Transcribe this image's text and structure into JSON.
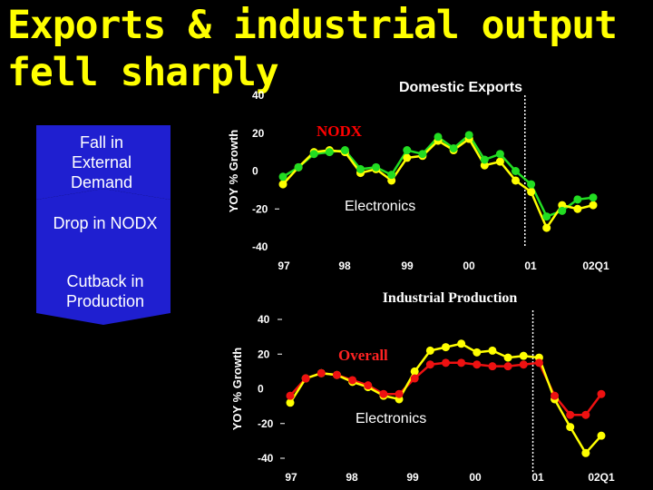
{
  "slide": {
    "title": "Exports & industrial output fell sharply",
    "colors": {
      "title": "#ffff00",
      "background": "#000000",
      "arrow": "#1f1fd0"
    }
  },
  "steps": [
    {
      "label": "Fall in External Demand"
    },
    {
      "label": "Drop in NODX"
    },
    {
      "label": "Cutback in Production"
    }
  ],
  "chart_data": [
    {
      "type": "line",
      "title": "Domestic Exports",
      "ylabel": "YOY % Growth",
      "ylim": [
        -40,
        40
      ],
      "yticks": [
        "40",
        "20",
        "0",
        "-20",
        "-40"
      ],
      "xticks": [
        "97",
        "98",
        "99",
        "00",
        "01",
        "02Q1"
      ],
      "x": [
        1997.0,
        1997.25,
        1997.5,
        1997.75,
        1998.0,
        1998.25,
        1998.5,
        1998.75,
        1999.0,
        1999.25,
        1999.5,
        1999.75,
        2000.0,
        2000.25,
        2000.5,
        2000.75,
        2001.0,
        2001.25,
        2001.5,
        2001.75,
        2002.0
      ],
      "vline_x": 2000.9,
      "grid": false,
      "annotations": [
        "NODX",
        "Electronics"
      ],
      "series": [
        {
          "name": "NODX",
          "color": "#22dd22",
          "values": [
            -3,
            2,
            9,
            10,
            11,
            1,
            2,
            -2,
            11,
            9,
            18,
            12,
            19,
            6,
            9,
            0,
            -7,
            -24,
            -21,
            -15,
            -14
          ]
        },
        {
          "name": "Electronics",
          "color": "#ffff00",
          "values": [
            -7,
            2,
            10,
            11,
            10,
            -1,
            1,
            -5,
            7,
            8,
            16,
            11,
            17,
            3,
            5,
            -5,
            -11,
            -30,
            -18,
            -20,
            -18
          ]
        }
      ]
    },
    {
      "type": "line",
      "title": "Industrial Production",
      "ylabel": "YOY % Growth",
      "ylim": [
        -40,
        40
      ],
      "yticks": [
        "40",
        "20",
        "0",
        "-20",
        "-40"
      ],
      "xticks": [
        "97",
        "98",
        "99",
        "00",
        "01",
        "02Q1"
      ],
      "x": [
        1997.0,
        1997.25,
        1997.5,
        1997.75,
        1998.0,
        1998.25,
        1998.5,
        1998.75,
        1999.0,
        1999.25,
        1999.5,
        1999.75,
        2000.0,
        2000.25,
        2000.5,
        2000.75,
        2001.0,
        2001.25,
        2001.5,
        2001.75,
        2002.0
      ],
      "vline_x": 2000.9,
      "grid": false,
      "annotations": [
        "Overall",
        "Electronics"
      ],
      "series": [
        {
          "name": "Overall",
          "color": "#ee1111",
          "values": [
            -4,
            6,
            9,
            8,
            5,
            2,
            -3,
            -3,
            6,
            14,
            15,
            15,
            14,
            13,
            13,
            14,
            15,
            -4,
            -15,
            -15,
            -3
          ]
        },
        {
          "name": "Electronics",
          "color": "#ffff00",
          "values": [
            -8,
            6,
            9,
            8,
            4,
            1,
            -4,
            -6,
            10,
            22,
            24,
            26,
            21,
            22,
            18,
            19,
            18,
            -6,
            -22,
            -37,
            -27
          ]
        }
      ]
    }
  ]
}
